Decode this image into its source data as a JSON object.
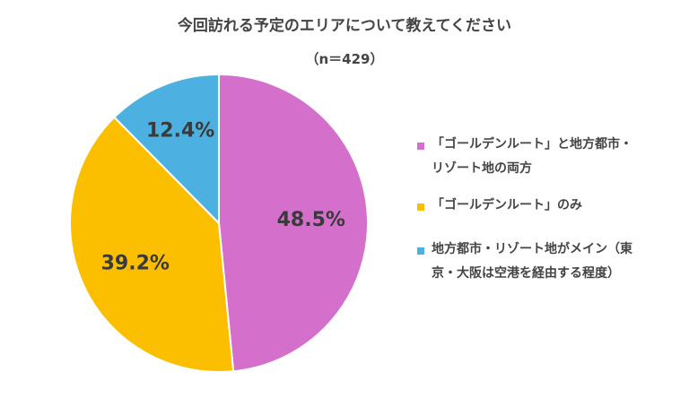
{
  "chart_data": {
    "type": "pie",
    "title": "今回訪れる予定のエリアについて教えてください",
    "subtitle": "（n＝429）",
    "slices": [
      {
        "label": "「ゴールデンルート」と地方都市・\nリゾート地の両方",
        "value": 48.5,
        "value_label": "48.5%",
        "color": "#d46fcb"
      },
      {
        "label": "「ゴールデンルート」のみ",
        "value": 39.2,
        "value_label": "39.2%",
        "color": "#fbbf00"
      },
      {
        "label": "地方都市・リゾート地がメイン（東\n京・大阪は空港を経由する程度）",
        "value": 12.4,
        "value_label": "12.4%",
        "color": "#4cb0e0"
      }
    ],
    "start_angle_deg": 0,
    "direction": "clockwise",
    "legend_position": "right"
  }
}
